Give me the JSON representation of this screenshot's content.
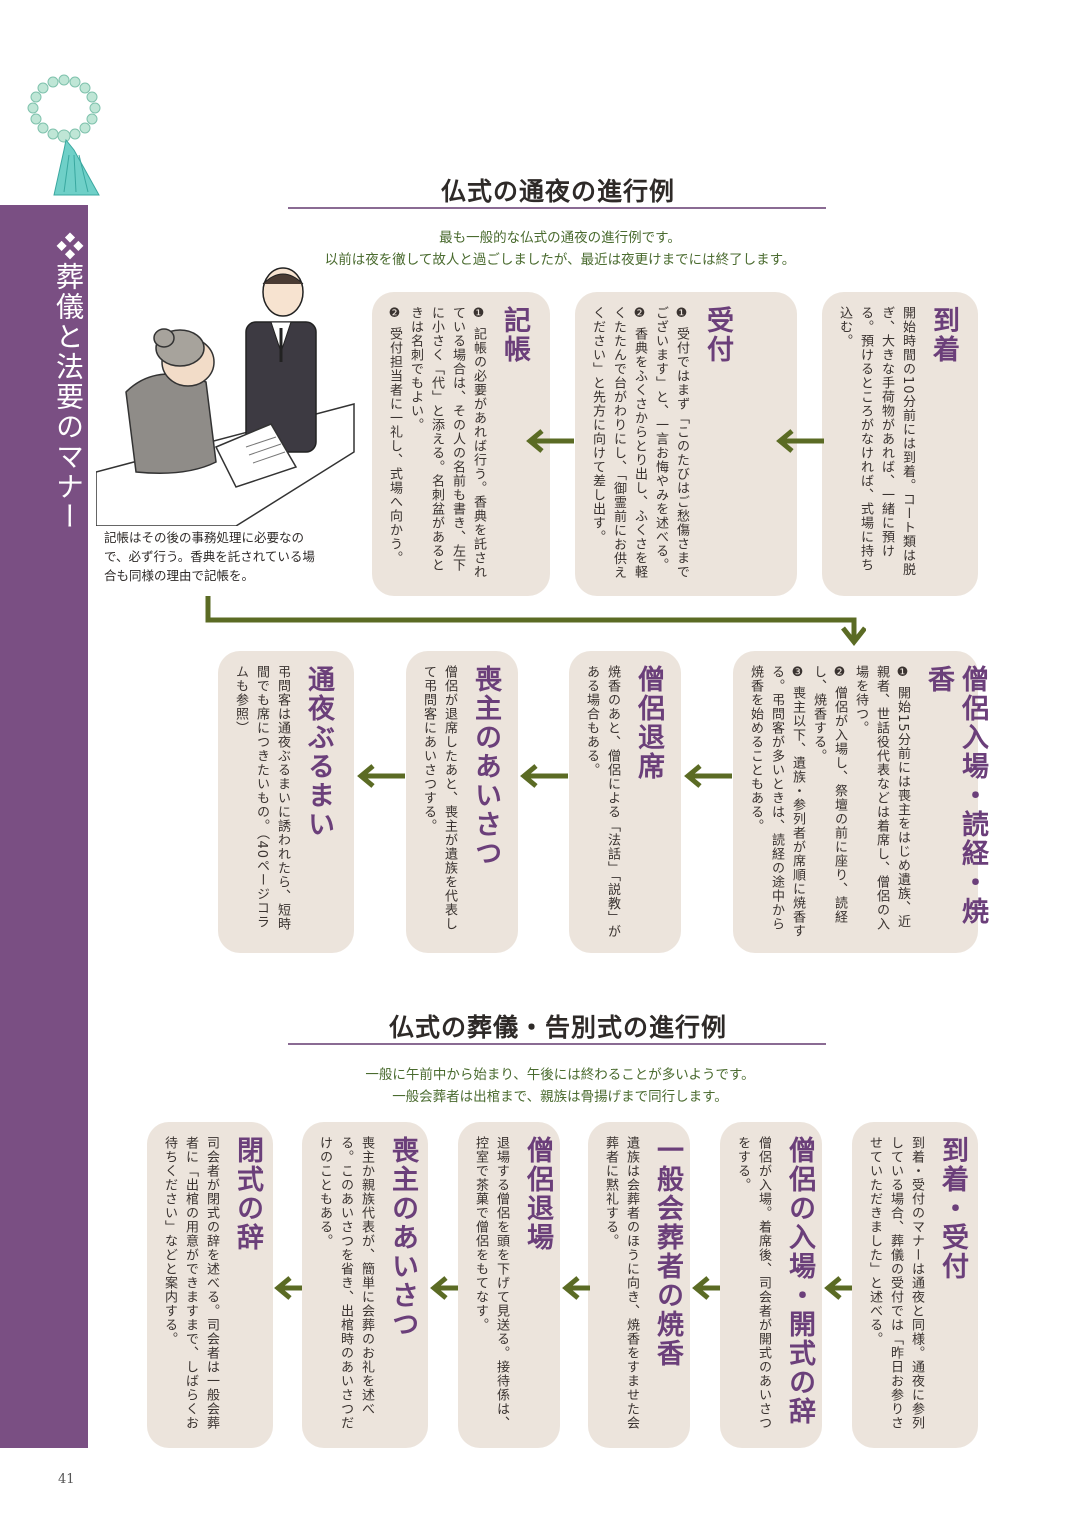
{
  "sidebar": {
    "title": "❖葬儀と法要のマナー",
    "color": "#7a4f83"
  },
  "page_number": "41",
  "tsuya": {
    "title": "仏式の通夜の進行例",
    "intro": [
      "最も一般的な仏式の通夜の進行例です。",
      "以前は夜を徹して故人と過ごしましたが、最近は夜更けまでには終了します。"
    ],
    "steps": [
      {
        "title": "到着",
        "body": [
          "開始時間の10分前には到着。コート類は脱ぎ、大きな手荷物があれば、一緒に預ける。預けるところがなければ、式場に持ち込む。"
        ]
      },
      {
        "title": "受付",
        "body": [
          "❶ 受付ではまず「このたびはご愁傷さまでございます」と、一言お悔やみを述べる。",
          "❷ 香典をふくさからとり出し、ふくさを軽くたたんで台がわりにし、「御霊前にお供えください」と先方に向けて差し出す。"
        ]
      },
      {
        "title": "記帳",
        "body": [
          "❶ 記帳の必要があれば行う。香典を託されている場合は、その人の名前も書き、左下に小さく「代」と添える。名刺盆があるときは名刺でもよい。",
          "❷ 受付担当者に一礼し、式場へ向かう。"
        ]
      },
      {
        "title": "僧侶入場・読経・焼香",
        "body": [
          "❶ 開始15分前には喪主をはじめ遺族、近親者、世話役代表などは着席し、僧侶の入場を待つ。",
          "❷ 僧侶が入場し、祭壇の前に座り、読経し、焼香する。",
          "❸ 喪主以下、遺族・参列者が席順に焼香する。弔問客が多いときは、読経の途中から焼香を始めることもある。"
        ]
      },
      {
        "title": "僧侶退席",
        "body": [
          "焼香のあと、僧侶による「法話」「説教」がある場合もある。"
        ]
      },
      {
        "title": "喪主のあいさつ",
        "body": [
          "僧侶が退席したあと、喪主が遺族を代表して弔問客にあいさつする。"
        ]
      },
      {
        "title": "通夜ぶるまい",
        "body": [
          "弔問客は通夜ぶるまいに誘われたら、短時間でも席につきたいもの。（40ページコラムも参照）"
        ]
      }
    ],
    "caption": "記帳はその後の事務処理に必要なので、必ず行う。香典を託されている場合も同様の理由で記帳を。"
  },
  "sogi": {
    "title": "仏式の葬儀・告別式の進行例",
    "intro": [
      "一般に午前中から始まり、午後には終わることが多いようです。",
      "一般会葬者は出棺まで、親族は骨揚げまで同行します。"
    ],
    "steps": [
      {
        "title": "到着・受付",
        "body": [
          "到着・受付のマナーは通夜と同様。通夜に参列している場合、葬儀の受付では「昨日お参りさせていただきました」と述べる。"
        ]
      },
      {
        "title": "僧侶の入場・開式の辞",
        "body": [
          "僧侶が入場。着席後、司会者が開式のあいさつをする。"
        ]
      },
      {
        "title": "一般会葬者の焼香",
        "body": [
          "遺族は会葬者のほうに向き、焼香をすませた会葬者に黙礼する。"
        ]
      },
      {
        "title": "僧侶退場",
        "body": [
          "退場する僧侶を頭を下げて見送る。接待係は、控室で茶菓で僧侶をもてなす。"
        ]
      },
      {
        "title": "喪主のあいさつ",
        "body": [
          "喪主か親族代表が、簡単に会葬のお礼を述べる。このあいさつを省き、出棺時のあいさつだけのこともある。"
        ]
      },
      {
        "title": "閉式の辞",
        "body": [
          "司会者が閉式の辞を述べる。司会者は一般会葬者に「出棺の用意ができますまで、しばらくお待ちください」などと案内する。"
        ]
      }
    ]
  },
  "colors": {
    "card": "#ece4dc",
    "title": "#6b3f7a",
    "arrow": "#5b6b24",
    "intro": "#4a6b2f"
  }
}
